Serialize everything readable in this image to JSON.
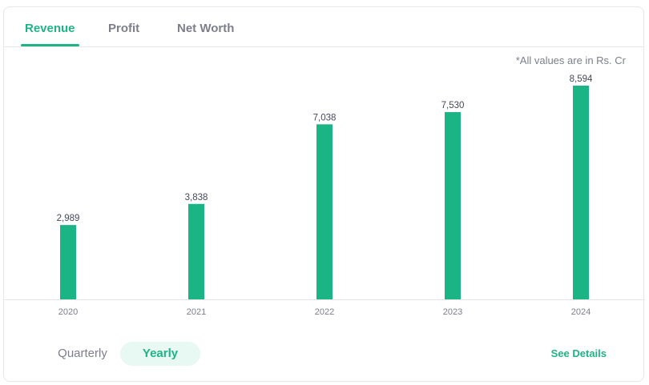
{
  "tabs": [
    {
      "label": "Revenue",
      "active": true
    },
    {
      "label": "Profit",
      "active": false
    },
    {
      "label": "Net Worth",
      "active": false
    }
  ],
  "note": "*All values are in Rs. Cr",
  "period_toggle": {
    "quarterly": "Quarterly",
    "yearly": "Yearly",
    "selected": "Yearly"
  },
  "see_details": "See Details",
  "colors": {
    "accent": "#1fb386",
    "bar": "#1ab485",
    "axis": "#e3e4e8"
  },
  "chart_data": {
    "type": "bar",
    "categories": [
      "2020",
      "2021",
      "2022",
      "2023",
      "2024"
    ],
    "values": [
      2989,
      3838,
      7038,
      7530,
      8594
    ],
    "value_labels": [
      "2,989",
      "3,838",
      "7,038",
      "7,530",
      "8,594"
    ],
    "grid": false,
    "legend": "none"
  }
}
